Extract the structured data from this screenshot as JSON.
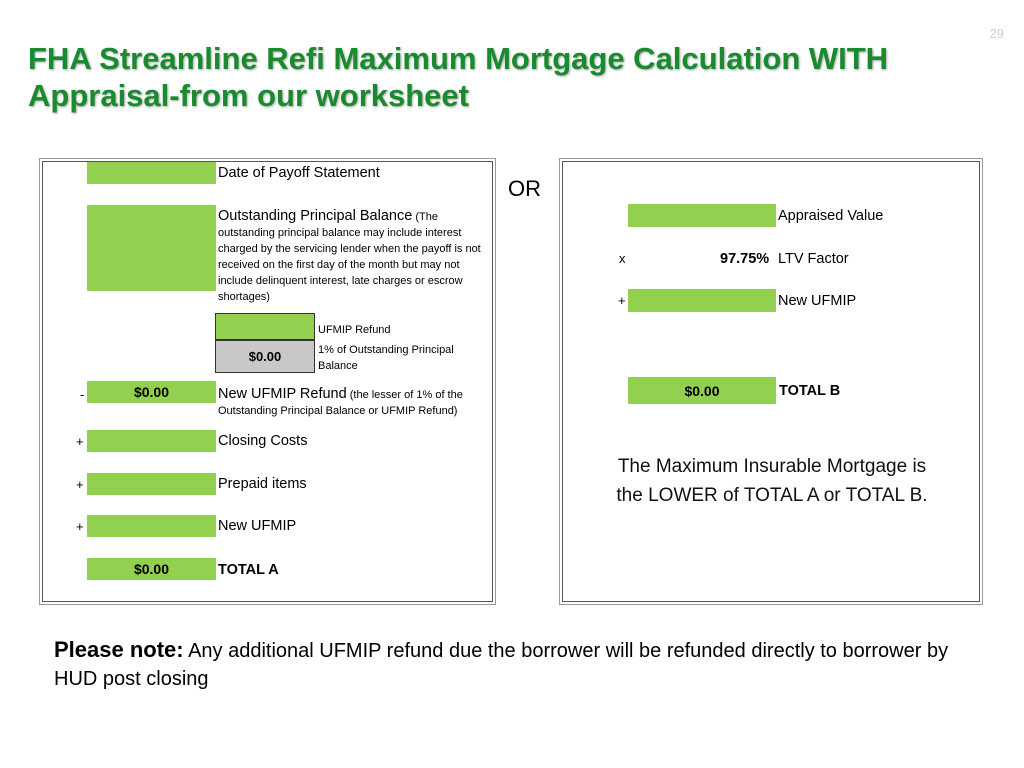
{
  "slide": {
    "number": "29",
    "title": "FHA Streamline Refi Maximum Mortgage Calculation WITH Appraisal-from our worksheet"
  },
  "left_panel": {
    "payoff_date_label": "Date of Payoff Statement",
    "principal_label": "Outstanding Principal Balance",
    "principal_note_1": " (The",
    "principal_note_2": "outstanding principal balance may include interest charged by the servicing lender when the payoff is not received on the first day of the month but may not include delinquent interest, late charges or escrow shortages)",
    "ufmip_refund_label": "UFMIP Refund",
    "one_pct_value": "$0.00",
    "one_pct_label": "1% of Outstanding Principal Balance",
    "new_refund_op": "-",
    "new_refund_value": "$0.00",
    "new_refund_label": "New UFMIP Refund",
    "new_refund_note": " (the lesser of 1% of the Outstanding Principal Balance or UFMIP Refund)",
    "closing_op": "+",
    "closing_label": "Closing Costs",
    "prepaid_op": "+",
    "prepaid_label": "Prepaid items",
    "new_ufmip_op": "+",
    "new_ufmip_label": "New UFMIP",
    "total_value": "$0.00",
    "total_label": "TOTAL A"
  },
  "or_label": "OR",
  "right_panel": {
    "appraised_label": "Appraised Value",
    "ltv_op": "x",
    "ltv_value": "97.75%",
    "ltv_label": "LTV Factor",
    "new_ufmip_op": "+",
    "new_ufmip_label": "New UFMIP",
    "total_value": "$0.00",
    "total_label": "TOTAL B",
    "conclusion": "The Maximum Insurable Mortgage is the LOWER of TOTAL A or TOTAL B."
  },
  "note": {
    "lead": "Please note:",
    "text": " Any additional UFMIP refund due the borrower will be refunded directly to borrower by HUD post closing"
  },
  "colors": {
    "title_green": "#1a8a2e",
    "cell_green": "#92d050",
    "cell_gray": "#c8c8c8"
  }
}
